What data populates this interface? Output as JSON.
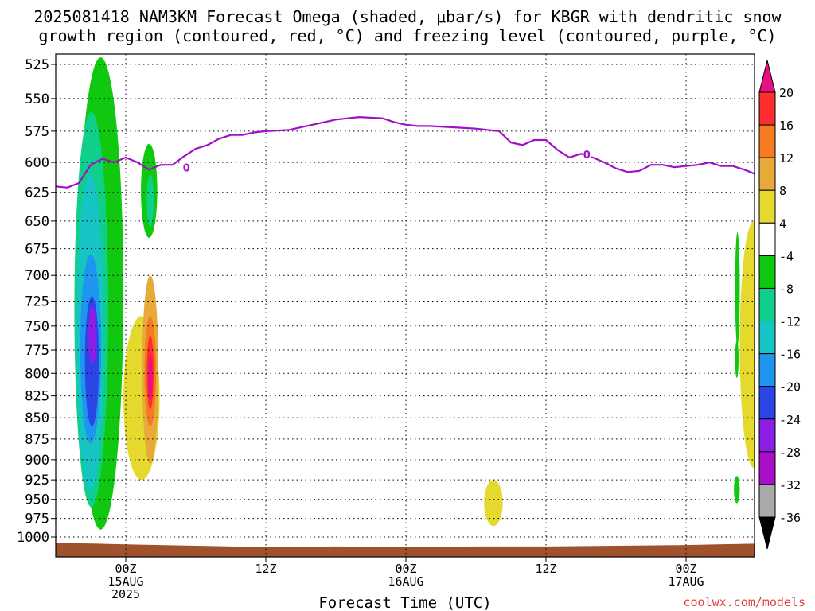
{
  "title": {
    "line1": "2025081418 NAM3KM Forecast Omega (shaded, μbar/s) for KBGR with dendritic snow",
    "line2": "growth region (contoured, red, °C) and freezing level (contoured, purple, °C)"
  },
  "chart_data": {
    "type": "heatmap",
    "xlabel": "Forecast Time (UTC)",
    "ylabel": "",
    "y_ticks": [
      525,
      550,
      575,
      600,
      625,
      650,
      675,
      700,
      725,
      750,
      775,
      800,
      825,
      850,
      875,
      900,
      925,
      950,
      975,
      1000
    ],
    "ylim": [
      1000,
      520
    ],
    "x_ticks": [
      {
        "hour": 6,
        "label": "00Z",
        "sub": "15AUG",
        "year": "2025"
      },
      {
        "hour": 18,
        "label": "12Z",
        "sub": "",
        "year": ""
      },
      {
        "hour": 30,
        "label": "00Z",
        "sub": "16AUG",
        "year": ""
      },
      {
        "hour": 42,
        "label": "12Z",
        "sub": "",
        "year": ""
      },
      {
        "hour": 54,
        "label": "00Z",
        "sub": "17AUG",
        "year": ""
      }
    ],
    "xlim": [
      0,
      60
    ],
    "grid": true,
    "colorbar": {
      "labels": [
        "20",
        "16",
        "12",
        "8",
        "4",
        "-4",
        "-8",
        "-12",
        "-16",
        "-20",
        "-24",
        "-28",
        "-32",
        "-36"
      ],
      "colors": [
        "#e8117e",
        "#ff2e2e",
        "#f57a20",
        "#e6a93a",
        "#e6d92e",
        "#ffffff",
        "#10c810",
        "#0fcf8a",
        "#16c4c4",
        "#1e96f0",
        "#2c46e6",
        "#8c1ee6",
        "#a80fc8",
        "#aaaaaa"
      ],
      "top_color": "#e8117e",
      "bottom_color": "#000000"
    },
    "freezing_level": {
      "color": "#a010c8",
      "label": "0",
      "hours": [
        0,
        1,
        2,
        3,
        4,
        5,
        6,
        7,
        8,
        9,
        10,
        11,
        12,
        13,
        14,
        15,
        16,
        17,
        18,
        20,
        22,
        24,
        26,
        28,
        29,
        30,
        31,
        32,
        34,
        36,
        38,
        39,
        40,
        41,
        42,
        43,
        44,
        45,
        46,
        47,
        48,
        49,
        50,
        51,
        52,
        53,
        54,
        55,
        56,
        57,
        58,
        59,
        60
      ],
      "pressures": [
        620,
        621,
        617,
        602,
        597,
        600,
        596,
        600,
        606,
        602,
        602,
        595,
        589,
        586,
        581,
        578,
        578,
        576,
        575,
        574,
        570,
        566,
        564,
        565,
        568,
        570,
        571,
        571,
        572,
        573,
        575,
        584,
        586,
        582,
        582,
        590,
        596,
        593,
        596,
        600,
        605,
        608,
        607,
        602,
        602,
        604,
        603,
        602,
        600,
        603,
        603,
        606,
        610
      ]
    },
    "omega_regions": [
      {
        "value": -8,
        "hour_range": [
          1.9,
          5.8
        ],
        "pressure_range": [
          520,
          990
        ]
      },
      {
        "value": -12,
        "hour_range": [
          1.6,
          4.5
        ],
        "pressure_range": [
          560,
          960
        ]
      },
      {
        "value": -16,
        "hour_range": [
          1.8,
          4.1
        ],
        "pressure_range": [
          610,
          940
        ]
      },
      {
        "value": -20,
        "hour_range": [
          2.1,
          3.9
        ],
        "pressure_range": [
          680,
          880
        ]
      },
      {
        "value": -24,
        "hour_range": [
          2.5,
          3.7
        ],
        "pressure_range": [
          720,
          860
        ]
      },
      {
        "value": -28,
        "hour_range": [
          2.8,
          3.5
        ],
        "pressure_range": [
          730,
          790
        ]
      },
      {
        "value": -8,
        "hour_range": [
          7.3,
          8.7
        ],
        "pressure_range": [
          585,
          665
        ]
      },
      {
        "value": -12,
        "hour_range": [
          7.8,
          8.4
        ],
        "pressure_range": [
          610,
          655
        ]
      },
      {
        "value": 4,
        "hour_range": [
          5.8,
          8.9
        ],
        "pressure_range": [
          740,
          925
        ]
      },
      {
        "value": 8,
        "hour_range": [
          7.4,
          8.8
        ],
        "pressure_range": [
          700,
          905
        ]
      },
      {
        "value": 12,
        "hour_range": [
          7.6,
          8.6
        ],
        "pressure_range": [
          740,
          860
        ]
      },
      {
        "value": 16,
        "hour_range": [
          7.8,
          8.4
        ],
        "pressure_range": [
          760,
          840
        ]
      },
      {
        "value": 20,
        "hour_range": [
          7.9,
          8.3
        ],
        "pressure_range": [
          780,
          830
        ]
      },
      {
        "value": 4,
        "hour_range": [
          36.7,
          38.3
        ],
        "pressure_range": [
          925,
          985
        ]
      },
      {
        "value": -8,
        "hour_range": [
          58.2,
          58.6
        ],
        "pressure_range": [
          660,
          770
        ]
      },
      {
        "value": -8,
        "hour_range": [
          58.2,
          58.5
        ],
        "pressure_range": [
          765,
          805
        ]
      },
      {
        "value": -8,
        "hour_range": [
          58.1,
          58.6
        ],
        "pressure_range": [
          920,
          955
        ]
      },
      {
        "value": 4,
        "hour_range": [
          58.6,
          61.0
        ],
        "pressure_range": [
          650,
          910
        ]
      }
    ]
  },
  "credit": "coolwx.com/models"
}
